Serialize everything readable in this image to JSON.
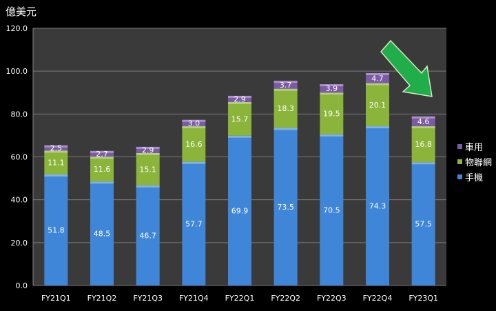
{
  "chart_data": {
    "type": "bar",
    "stacked": true,
    "title": "",
    "ylabel": "億美元",
    "xlabel": "",
    "ylim": [
      0,
      120
    ],
    "yticks": [
      "0.0",
      "20.0",
      "40.0",
      "60.0",
      "80.0",
      "100.0",
      "120.0"
    ],
    "grid": true,
    "legend_position": "right",
    "categories": [
      "FY21Q1",
      "FY21Q2",
      "FY21Q3",
      "FY21Q4",
      "FY22Q1",
      "FY22Q2",
      "FY22Q3",
      "FY22Q4",
      "FY23Q1"
    ],
    "series": [
      {
        "name": "手機",
        "color": "#3f86d8",
        "values": [
          51.8,
          48.5,
          46.7,
          57.7,
          69.9,
          73.5,
          70.5,
          74.3,
          57.5
        ]
      },
      {
        "name": "物聯網",
        "color": "#8bb43a",
        "values": [
          11.1,
          11.6,
          15.1,
          16.6,
          15.7,
          18.3,
          19.5,
          20.1,
          16.8
        ]
      },
      {
        "name": "車用",
        "color": "#7c5aa8",
        "values": [
          2.5,
          2.7,
          2.9,
          3.0,
          2.9,
          3.7,
          3.9,
          4.7,
          4.6
        ]
      }
    ],
    "annotations": [
      {
        "type": "arrow",
        "color": "#1fae4a",
        "direction": "down-right",
        "target": "FY23Q1"
      }
    ]
  }
}
